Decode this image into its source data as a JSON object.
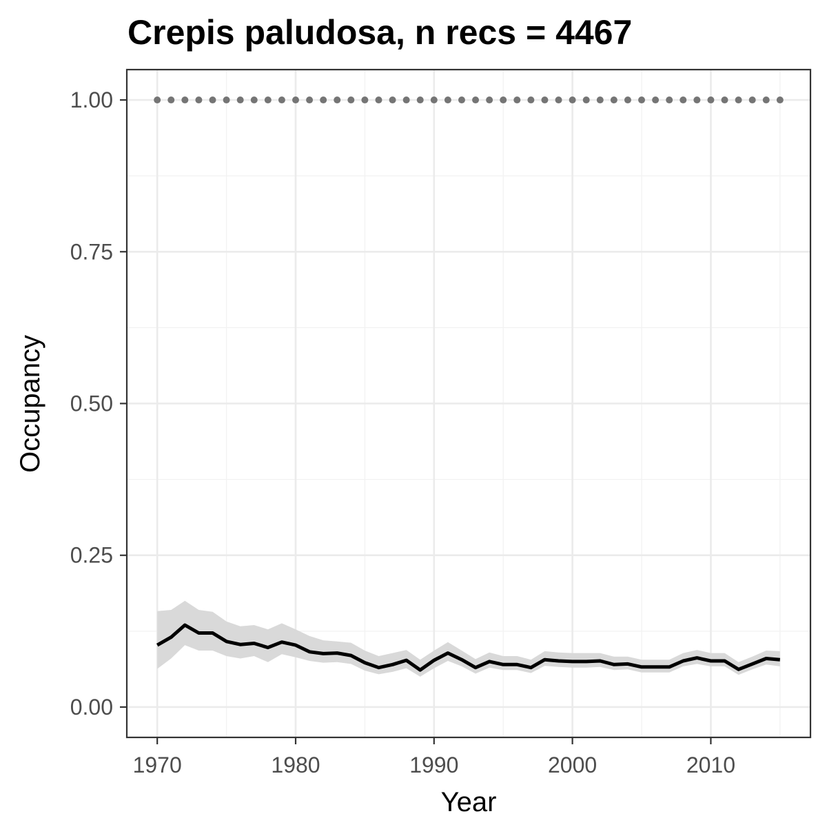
{
  "chart_data": {
    "type": "line",
    "title": "Crepis paludosa, n recs = 4467",
    "xlabel": "Year",
    "ylabel": "Occupancy",
    "xlim": [
      1967.8,
      2017.2
    ],
    "ylim": [
      -0.05,
      1.05
    ],
    "x_ticks": [
      1970,
      1980,
      1990,
      2000,
      2010
    ],
    "x_tick_labels": [
      "1970",
      "1980",
      "1990",
      "2000",
      "2010"
    ],
    "y_ticks": [
      0,
      0.25,
      0.5,
      0.75,
      1.0
    ],
    "y_tick_labels": [
      "0.00",
      "0.25",
      "0.50",
      "0.75",
      "1.00"
    ],
    "grid": true,
    "legend": "none",
    "colors": {
      "line": "#000000",
      "ribbon": "#d9d9d9",
      "dotted": "#757575",
      "panel_border": "#333333"
    },
    "series": [
      {
        "style": "dotted",
        "x": [
          1970,
          1971,
          1972,
          1973,
          1974,
          1975,
          1976,
          1977,
          1978,
          1979,
          1980,
          1981,
          1982,
          1983,
          1984,
          1985,
          1986,
          1987,
          1988,
          1989,
          1990,
          1991,
          1992,
          1993,
          1994,
          1995,
          1996,
          1997,
          1998,
          1999,
          2000,
          2001,
          2002,
          2003,
          2004,
          2005,
          2006,
          2007,
          2008,
          2009,
          2010,
          2011,
          2012,
          2013,
          2014,
          2015
        ],
        "values": [
          1,
          1,
          1,
          1,
          1,
          1,
          1,
          1,
          1,
          1,
          1,
          1,
          1,
          1,
          1,
          1,
          1,
          1,
          1,
          1,
          1,
          1,
          1,
          1,
          1,
          1,
          1,
          1,
          1,
          1,
          1,
          1,
          1,
          1,
          1,
          1,
          1,
          1,
          1,
          1,
          1,
          1,
          1,
          1,
          1,
          1
        ]
      },
      {
        "style": "solid",
        "x": [
          1970,
          1971,
          1972,
          1973,
          1974,
          1975,
          1976,
          1977,
          1978,
          1979,
          1980,
          1981,
          1982,
          1983,
          1984,
          1985,
          1986,
          1987,
          1988,
          1989,
          1990,
          1991,
          1992,
          1993,
          1994,
          1995,
          1996,
          1997,
          1998,
          1999,
          2000,
          2001,
          2002,
          2003,
          2004,
          2005,
          2006,
          2007,
          2008,
          2009,
          2010,
          2011,
          2012,
          2013,
          2014,
          2015
        ],
        "values": [
          0.102,
          0.115,
          0.135,
          0.122,
          0.122,
          0.108,
          0.103,
          0.105,
          0.098,
          0.107,
          0.102,
          0.091,
          0.088,
          0.089,
          0.085,
          0.073,
          0.065,
          0.07,
          0.077,
          0.061,
          0.077,
          0.089,
          0.078,
          0.065,
          0.075,
          0.07,
          0.07,
          0.065,
          0.078,
          0.076,
          0.075,
          0.075,
          0.076,
          0.07,
          0.071,
          0.066,
          0.066,
          0.066,
          0.076,
          0.081,
          0.076,
          0.076,
          0.062,
          0.071,
          0.08,
          0.078
        ],
        "lower": [
          0.063,
          0.08,
          0.102,
          0.093,
          0.093,
          0.084,
          0.08,
          0.084,
          0.074,
          0.087,
          0.082,
          0.076,
          0.073,
          0.074,
          0.071,
          0.06,
          0.054,
          0.058,
          0.064,
          0.05,
          0.064,
          0.076,
          0.067,
          0.055,
          0.065,
          0.061,
          0.061,
          0.056,
          0.068,
          0.066,
          0.065,
          0.065,
          0.066,
          0.061,
          0.062,
          0.057,
          0.057,
          0.057,
          0.067,
          0.071,
          0.067,
          0.067,
          0.053,
          0.062,
          0.07,
          0.067
        ],
        "upper": [
          0.158,
          0.16,
          0.175,
          0.16,
          0.157,
          0.141,
          0.133,
          0.135,
          0.128,
          0.138,
          0.128,
          0.117,
          0.11,
          0.108,
          0.106,
          0.093,
          0.084,
          0.089,
          0.094,
          0.078,
          0.093,
          0.107,
          0.093,
          0.079,
          0.09,
          0.084,
          0.084,
          0.078,
          0.092,
          0.09,
          0.089,
          0.089,
          0.089,
          0.083,
          0.083,
          0.078,
          0.078,
          0.078,
          0.089,
          0.094,
          0.089,
          0.089,
          0.074,
          0.083,
          0.093,
          0.092
        ]
      }
    ]
  }
}
